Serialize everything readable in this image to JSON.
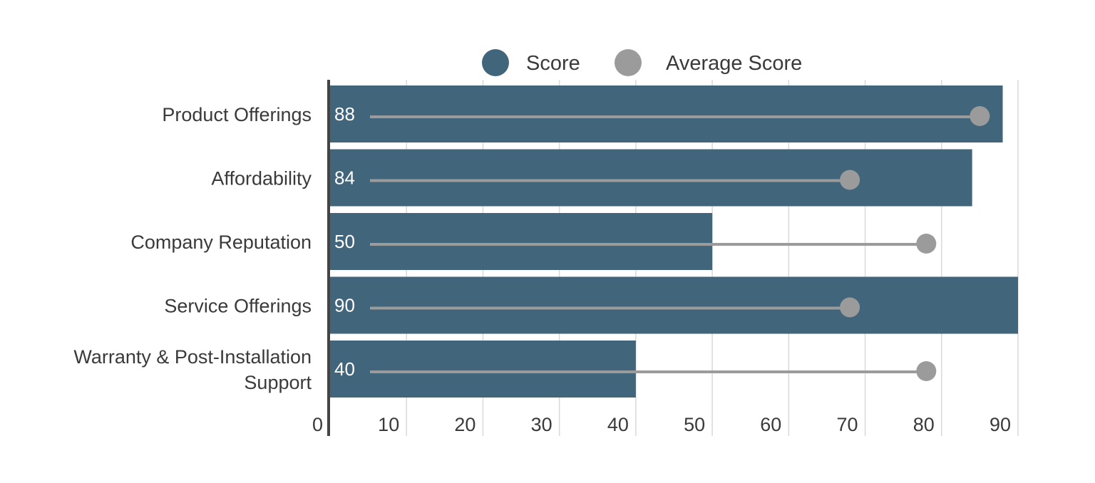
{
  "chart_data": {
    "type": "bar",
    "orientation": "horizontal",
    "categories": [
      [
        "Product Offerings"
      ],
      [
        "Affordability"
      ],
      [
        "Company Reputation"
      ],
      [
        "Service Offerings"
      ],
      [
        "Warranty & Post-Installation",
        "Support"
      ]
    ],
    "series": [
      {
        "name": "Score",
        "kind": "bar",
        "color": "#41657a",
        "values": [
          88,
          84,
          50,
          90,
          40
        ],
        "data_labels": [
          "88",
          "84",
          "50",
          "90",
          "40"
        ]
      },
      {
        "name": "Average Score",
        "kind": "lollipop",
        "color": "#9b9b9b",
        "values": [
          85,
          68,
          78,
          68,
          78
        ]
      }
    ],
    "xlim": [
      0,
      90
    ],
    "x_ticks": [
      {
        "value": 0,
        "label": "0"
      },
      {
        "value": 10,
        "label": "10"
      },
      {
        "value": 20,
        "label": "20"
      },
      {
        "value": 30,
        "label": "30"
      },
      {
        "value": 40,
        "label": "40"
      },
      {
        "value": 50,
        "label": "50"
      },
      {
        "value": 60,
        "label": "60"
      },
      {
        "value": 70,
        "label": "70"
      },
      {
        "value": 80,
        "label": "80"
      },
      {
        "value": 90,
        "label": "90"
      }
    ],
    "grid": true,
    "legend": "top-center",
    "title": "",
    "xlabel": "",
    "ylabel": ""
  }
}
